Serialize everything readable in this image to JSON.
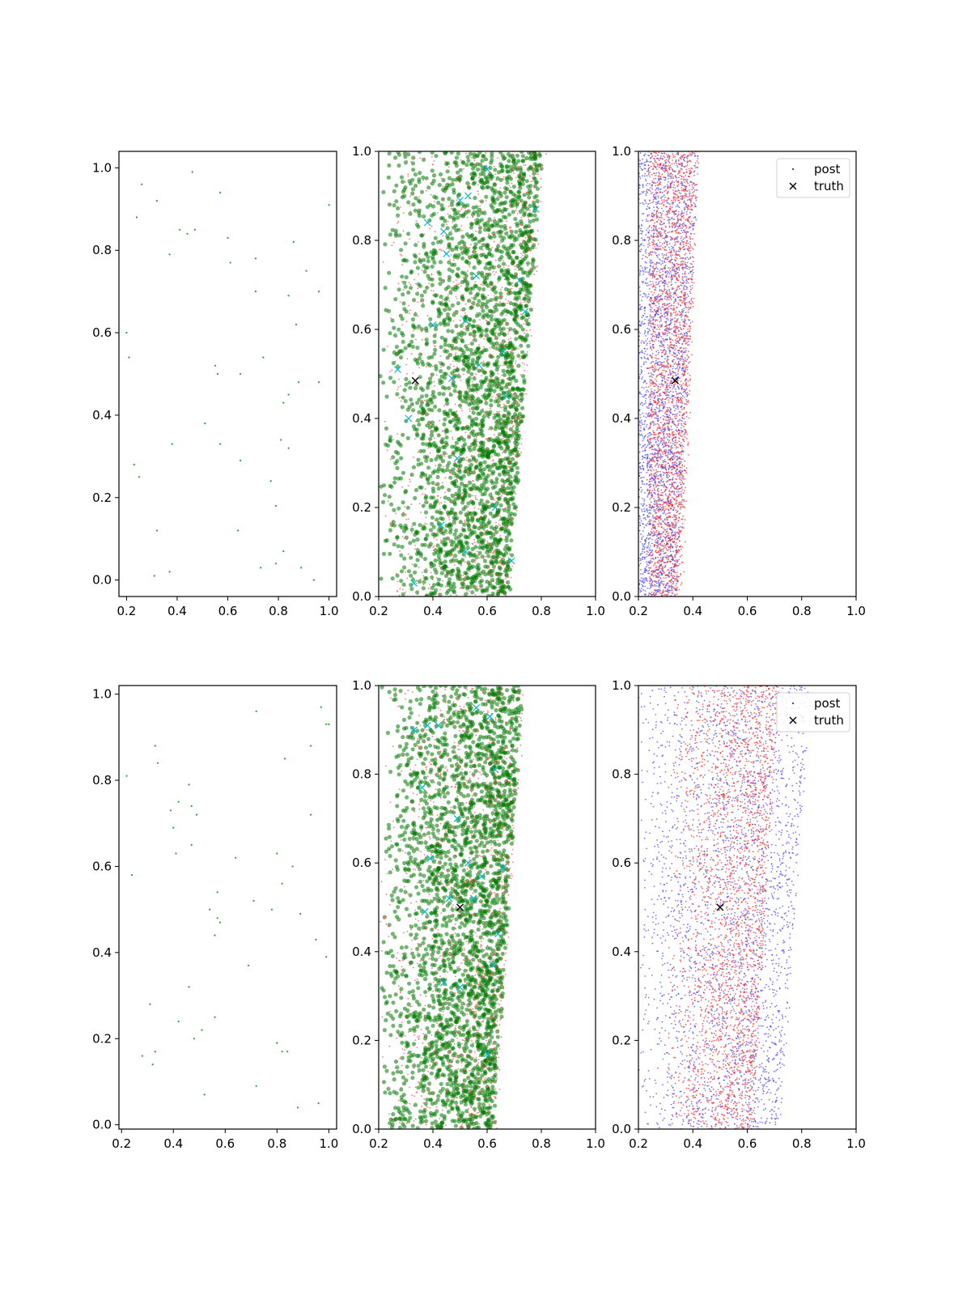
{
  "colors": {
    "samples": "#2ca02c",
    "green": "#007a00",
    "red": "#ff4040",
    "blue": "#3c3cff",
    "cyan": "#00b5c8",
    "truth": "#000000",
    "frame": "#000000"
  },
  "chart_data": [
    {
      "row": 1,
      "col": 1,
      "type": "scatter",
      "xlim": [
        0.17,
        1.03
      ],
      "ylim": [
        -0.04,
        1.04
      ],
      "xticks": [
        "0.2",
        "0.4",
        "0.6",
        "0.8",
        "1.0"
      ],
      "yticks": [
        "0.0",
        "0.2",
        "0.4",
        "0.6",
        "0.8",
        "1.0"
      ],
      "series": [
        {
          "role": "samples",
          "marker": "dot",
          "color": "#2ca02c",
          "x": [
            0.26,
            0.24,
            0.32,
            0.46,
            0.57,
            0.41,
            0.44,
            0.47,
            0.6,
            0.37,
            0.61,
            0.71,
            0.86,
            0.91,
            0.96,
            0.84,
            0.2,
            0.21,
            0.55,
            0.56,
            0.65,
            0.74,
            0.71,
            0.82,
            0.88,
            0.84,
            0.96,
            0.51,
            0.57,
            0.38,
            0.65,
            0.84,
            0.81,
            0.23,
            0.25,
            0.77,
            0.79,
            0.32,
            0.64,
            0.82,
            0.73,
            0.79,
            0.89,
            0.31,
            0.37,
            0.94,
            1.0,
            0.87
          ],
          "y": [
            0.96,
            0.88,
            0.92,
            0.99,
            0.94,
            0.85,
            0.84,
            0.85,
            0.83,
            0.79,
            0.77,
            0.78,
            0.82,
            0.75,
            0.7,
            0.69,
            0.6,
            0.54,
            0.52,
            0.5,
            0.5,
            0.54,
            0.7,
            0.43,
            0.48,
            0.45,
            0.48,
            0.38,
            0.33,
            0.33,
            0.29,
            0.32,
            0.34,
            0.28,
            0.25,
            0.24,
            0.18,
            0.12,
            0.12,
            0.07,
            0.03,
            0.04,
            0.03,
            0.01,
            0.02,
            0.0,
            0.91,
            0.62
          ]
        }
      ]
    },
    {
      "row": 1,
      "col": 2,
      "type": "scatter",
      "xlim": [
        0.2,
        1.0
      ],
      "ylim": [
        0.0,
        1.0
      ],
      "xticks": [
        "0.2",
        "0.4",
        "0.6",
        "0.8",
        "1.0"
      ],
      "yticks": [
        "0.0",
        "0.2",
        "0.4",
        "0.6",
        "0.8",
        "1.0"
      ],
      "series": [
        {
          "role": "green-cloud",
          "marker": "circle",
          "color": "#007a00",
          "n": 2600,
          "x_left": 0.2,
          "x_right_at_y0": 0.68,
          "x_right_at_y1": 0.8,
          "skew": 0.55
        },
        {
          "role": "red-cloud",
          "marker": "dot",
          "color": "#ff4040",
          "n": 1300,
          "x_left": 0.2,
          "x_right_at_y0": 0.68,
          "x_right_at_y1": 0.82,
          "skew": 0.55
        },
        {
          "role": "cyan-markers",
          "marker": "x",
          "color": "#00b5c8",
          "x": [
            0.27,
            0.31,
            0.4,
            0.45,
            0.5,
            0.53,
            0.38,
            0.44,
            0.52,
            0.66,
            0.72,
            0.78,
            0.6,
            0.69,
            0.47,
            0.57,
            0.33,
            0.43,
            0.52,
            0.63,
            0.67,
            0.74,
            0.56,
            0.49
          ],
          "y": [
            0.51,
            0.4,
            0.61,
            0.77,
            0.89,
            0.9,
            0.84,
            0.82,
            0.62,
            0.55,
            0.71,
            0.87,
            0.96,
            0.08,
            0.49,
            0.52,
            0.03,
            0.16,
            0.1,
            0.2,
            0.45,
            0.64,
            0.72,
            0.31
          ]
        },
        {
          "role": "truth",
          "marker": "x",
          "color": "#000000",
          "x": [
            0.335
          ],
          "y": [
            0.485
          ]
        }
      ]
    },
    {
      "row": 1,
      "col": 3,
      "type": "scatter",
      "xlim": [
        0.2,
        1.0
      ],
      "ylim": [
        0.0,
        1.0
      ],
      "xticks": [
        "0.2",
        "0.4",
        "0.6",
        "0.8",
        "1.0"
      ],
      "yticks": [
        "0.0",
        "0.2",
        "0.4",
        "0.6",
        "0.8",
        "1.0"
      ],
      "series": [
        {
          "role": "blue-cloud",
          "marker": "dot",
          "color": "#3c3cff",
          "n": 2600,
          "x_left": 0.2,
          "x_right_at_y0": 0.34,
          "x_right_at_y1": 0.42,
          "skew": 1.0
        },
        {
          "role": "red-cloud",
          "marker": "dot",
          "color": "#ff2020",
          "n": 2300,
          "x_left": 0.24,
          "x_right_at_y0": 0.36,
          "x_right_at_y1": 0.42,
          "skew": 1.0
        },
        {
          "role": "truth",
          "marker": "x",
          "color": "#000000",
          "x": [
            0.335
          ],
          "y": [
            0.485
          ]
        }
      ],
      "legend": {
        "placement": "upper-right",
        "entries": [
          {
            "label": "post",
            "marker": "dot",
            "color": "#3c3cff"
          },
          {
            "label": "truth",
            "marker": "x",
            "color": "#000000"
          }
        ]
      }
    },
    {
      "row": 2,
      "col": 1,
      "type": "scatter",
      "xlim": [
        0.19,
        1.03
      ],
      "ylim": [
        -0.01,
        1.02
      ],
      "xticks": [
        "0.2",
        "0.4",
        "0.6",
        "0.8",
        "1.0"
      ],
      "yticks": [
        "0.0",
        "0.2",
        "0.4",
        "0.6",
        "0.8",
        "1.0"
      ],
      "series": [
        {
          "role": "samples",
          "marker": "dot",
          "color": "#2ca02c",
          "x": [
            0.22,
            0.33,
            0.34,
            0.72,
            0.83,
            0.93,
            0.97,
            0.99,
            1.0,
            0.46,
            0.39,
            0.42,
            0.47,
            0.49,
            0.4,
            0.41,
            0.47,
            0.64,
            0.8,
            0.24,
            0.57,
            0.71,
            0.78,
            0.82,
            0.86,
            0.54,
            0.56,
            0.58,
            0.89,
            0.95,
            0.99,
            0.69,
            0.46,
            0.31,
            0.42,
            0.48,
            0.51,
            0.56,
            0.28,
            0.33,
            0.32,
            0.52,
            0.72,
            0.8,
            0.82,
            0.84,
            0.88,
            0.96,
            0.57,
            0.93
          ],
          "y": [
            0.81,
            0.88,
            0.84,
            0.96,
            0.85,
            0.88,
            0.97,
            0.93,
            0.93,
            0.79,
            0.73,
            0.75,
            0.74,
            0.72,
            0.69,
            0.63,
            0.65,
            0.62,
            0.63,
            0.58,
            0.54,
            0.52,
            0.5,
            0.56,
            0.6,
            0.5,
            0.44,
            0.47,
            0.49,
            0.43,
            0.39,
            0.37,
            0.32,
            0.28,
            0.24,
            0.2,
            0.22,
            0.25,
            0.16,
            0.17,
            0.14,
            0.07,
            0.09,
            0.19,
            0.17,
            0.17,
            0.04,
            0.05,
            0.48,
            0.72
          ]
        }
      ]
    },
    {
      "row": 2,
      "col": 2,
      "type": "scatter",
      "xlim": [
        0.2,
        1.0
      ],
      "ylim": [
        0.0,
        1.0
      ],
      "xticks": [
        "0.2",
        "0.4",
        "0.6",
        "0.8",
        "1.0"
      ],
      "yticks": [
        "0.0",
        "0.2",
        "0.4",
        "0.6",
        "0.8",
        "1.0"
      ],
      "series": [
        {
          "role": "green-cloud",
          "marker": "circle",
          "color": "#007a00",
          "n": 2600,
          "x_left": 0.2,
          "x_right_at_y0": 0.62,
          "x_right_at_y1": 0.73,
          "skew": 0.55
        },
        {
          "role": "red-cloud",
          "marker": "dot",
          "color": "#ff4040",
          "n": 1300,
          "x_left": 0.2,
          "x_right_at_y0": 0.63,
          "x_right_at_y1": 0.74,
          "skew": 0.55
        },
        {
          "role": "cyan-markers",
          "marker": "x",
          "color": "#00b5c8",
          "x": [
            0.36,
            0.38,
            0.33,
            0.42,
            0.37,
            0.46,
            0.5,
            0.55,
            0.6,
            0.62,
            0.64,
            0.53,
            0.58,
            0.44,
            0.49,
            0.61,
            0.56,
            0.66,
            0.39,
            0.63
          ],
          "y": [
            0.77,
            0.91,
            0.9,
            0.91,
            0.49,
            0.52,
            0.32,
            0.52,
            0.17,
            0.37,
            0.44,
            0.6,
            0.57,
            0.33,
            0.7,
            0.93,
            0.95,
            0.59,
            0.61,
            0.81
          ]
        },
        {
          "role": "truth",
          "marker": "x",
          "color": "#000000",
          "x": [
            0.5
          ],
          "y": [
            0.5
          ]
        }
      ]
    },
    {
      "row": 2,
      "col": 3,
      "type": "scatter",
      "xlim": [
        0.2,
        1.0
      ],
      "ylim": [
        0.0,
        1.0
      ],
      "xticks": [
        "0.2",
        "0.4",
        "0.6",
        "0.8",
        "1.0"
      ],
      "yticks": [
        "0.0",
        "0.2",
        "0.4",
        "0.6",
        "0.8",
        "1.0"
      ],
      "series": [
        {
          "role": "blue-cloud",
          "marker": "dot",
          "color": "#3c3cff",
          "n": 2700,
          "x_left": 0.2,
          "x_right_at_y0": 0.72,
          "x_right_at_y1": 0.83,
          "skew": 0.7
        },
        {
          "role": "red-cloud",
          "marker": "dot",
          "color": "#ff2020",
          "n": 2400,
          "x_left": 0.3,
          "x_right_at_y0": 0.62,
          "x_right_at_y1": 0.71,
          "skew": 0.55
        },
        {
          "role": "truth",
          "marker": "x",
          "color": "#000000",
          "x": [
            0.5
          ],
          "y": [
            0.5
          ]
        }
      ],
      "legend": {
        "placement": "upper-right",
        "entries": [
          {
            "label": "post",
            "marker": "dot",
            "color": "#3c3cff"
          },
          {
            "label": "truth",
            "marker": "x",
            "color": "#000000"
          }
        ]
      }
    }
  ]
}
